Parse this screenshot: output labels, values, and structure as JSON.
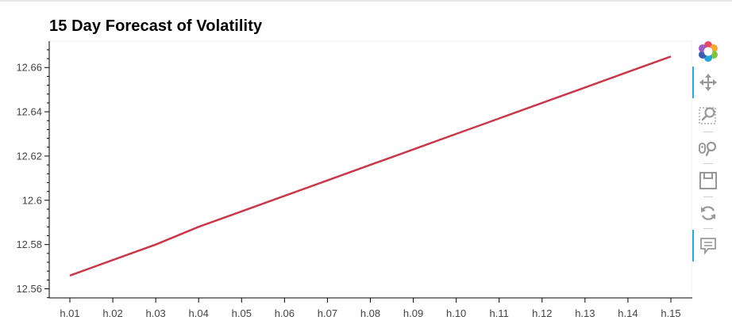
{
  "chart_data": {
    "type": "line",
    "title": "15 Day Forecast of Volatility",
    "xlabel": "",
    "ylabel": "",
    "categories": [
      "h.01",
      "h.02",
      "h.03",
      "h.04",
      "h.05",
      "h.06",
      "h.07",
      "h.08",
      "h.09",
      "h.10",
      "h.11",
      "h.12",
      "h.13",
      "h.14",
      "h.15"
    ],
    "series": [
      {
        "values": [
          12.566,
          12.573,
          12.58,
          12.588,
          12.595,
          12.602,
          12.609,
          12.616,
          12.623,
          12.63,
          12.637,
          12.644,
          12.651,
          12.658,
          12.665
        ],
        "color": "#c9374a"
      }
    ],
    "ylim": [
      12.5559,
      12.6719
    ],
    "yticks": [
      "12.56",
      "12.58",
      "12.6",
      "12.62",
      "12.64",
      "12.66"
    ],
    "grid": false,
    "legend": "none"
  },
  "toolbar": {
    "tools": [
      {
        "icon": "bokeh-logo-icon",
        "active": false
      },
      {
        "icon": "pan-icon",
        "active": true
      },
      {
        "icon": "box-zoom-icon",
        "active": false
      },
      {
        "icon": "wheel-zoom-icon",
        "active": false
      },
      {
        "icon": "save-icon",
        "active": false
      },
      {
        "icon": "reset-icon",
        "active": false
      },
      {
        "icon": "hover-icon",
        "active": true
      }
    ]
  }
}
